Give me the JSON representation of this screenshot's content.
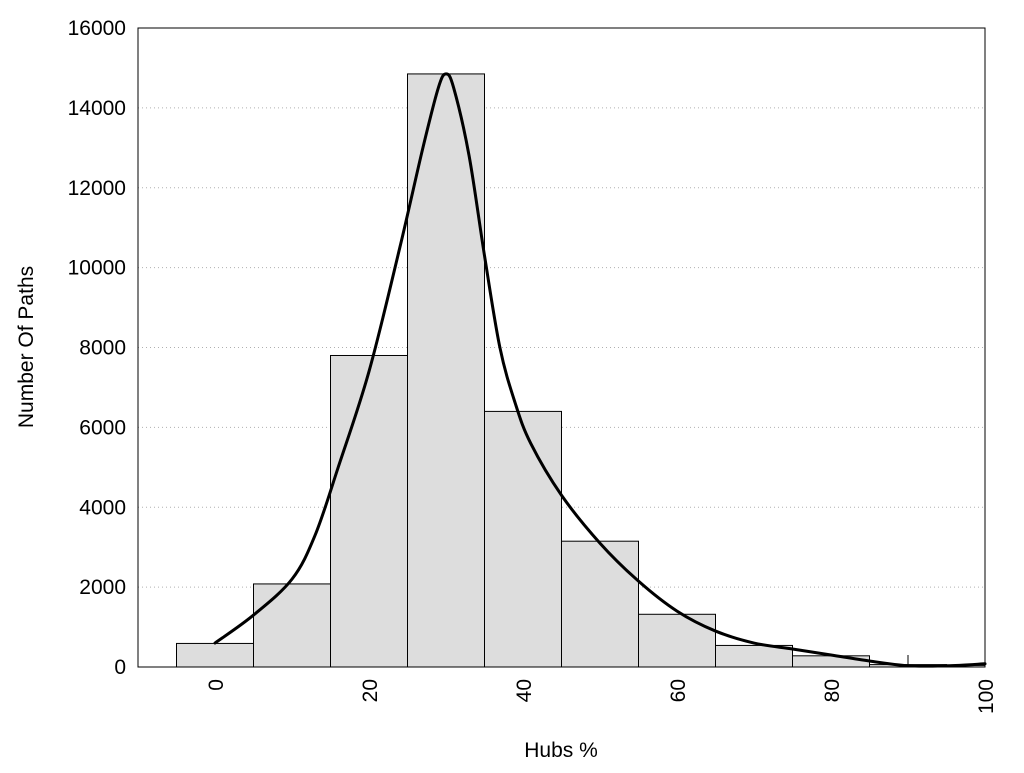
{
  "chart_data": {
    "type": "bar",
    "title": "",
    "xlabel": "Hubs %",
    "ylabel": "Number Of Paths",
    "xlim": [
      -10,
      100
    ],
    "ylim": [
      0,
      16000
    ],
    "grid": true,
    "colors": {
      "bar_fill": "#dddddd",
      "bar_stroke": "#000000",
      "curve": "#000000",
      "grid": "#b0b0b0"
    },
    "x_ticks": [
      0,
      20,
      40,
      60,
      80,
      100
    ],
    "x_tick_labels": [
      "0",
      "20",
      "40",
      "60",
      "80",
      "100"
    ],
    "y_ticks": [
      0,
      2000,
      4000,
      6000,
      8000,
      10000,
      12000,
      14000,
      16000
    ],
    "y_tick_labels": [
      "0",
      "2000",
      "4000",
      "6000",
      "8000",
      "10000",
      "12000",
      "14000",
      "16000"
    ],
    "bins": [
      {
        "x0": -5,
        "x1": 5,
        "value": 590
      },
      {
        "x0": 5,
        "x1": 15,
        "value": 2080
      },
      {
        "x0": 15,
        "x1": 25,
        "value": 7800
      },
      {
        "x0": 25,
        "x1": 35,
        "value": 14850
      },
      {
        "x0": 35,
        "x1": 45,
        "value": 6400
      },
      {
        "x0": 45,
        "x1": 55,
        "value": 3150
      },
      {
        "x0": 55,
        "x1": 65,
        "value": 1320
      },
      {
        "x0": 65,
        "x1": 75,
        "value": 540
      },
      {
        "x0": 75,
        "x1": 85,
        "value": 280
      },
      {
        "x0": 85,
        "x1": 95,
        "value": 60
      },
      {
        "x0": 95,
        "x1": 100,
        "value": 40
      }
    ],
    "curve": {
      "type": "line",
      "x": [
        0,
        5,
        10,
        13,
        16,
        20,
        24,
        27,
        29,
        30,
        31,
        33,
        35,
        37,
        39,
        41,
        45,
        50,
        55,
        60,
        65,
        70,
        75,
        80,
        85,
        90,
        95,
        100
      ],
      "y": [
        600,
        1300,
        2200,
        3300,
        5000,
        7400,
        10500,
        13000,
        14500,
        14850,
        14500,
        12800,
        10300,
        8000,
        6600,
        5600,
        4300,
        3100,
        2150,
        1400,
        900,
        600,
        450,
        300,
        150,
        30,
        30,
        80
      ]
    }
  }
}
